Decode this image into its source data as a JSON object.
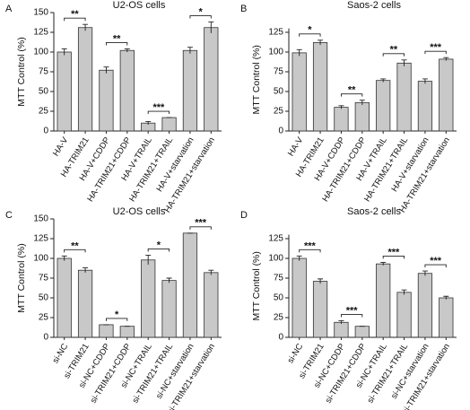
{
  "chart_data": [
    {
      "type": "bar",
      "panel": "A",
      "title": "U2-OS cells",
      "ylabel": "MTT Control (%)",
      "categories": [
        "HA-V",
        "HA-TRIM21",
        "HA-V+CDDP",
        "HA-TRIM21+CDDP",
        "HA-V+TRAIL",
        "HA-TRIM21+TRAIL",
        "HA-V+starvation",
        "HA-TRIM21+starvation"
      ],
      "values": [
        100,
        131,
        77,
        102,
        10,
        17,
        102,
        131
      ],
      "errors": [
        4,
        4,
        4,
        2,
        2,
        0,
        4,
        7
      ],
      "annotations": [
        "**",
        "**",
        "***",
        "*"
      ],
      "ylim": [
        0,
        150
      ],
      "yticks": [
        0,
        25,
        50,
        75,
        100,
        125,
        150
      ],
      "color": "#c8c8c8"
    },
    {
      "type": "bar",
      "panel": "B",
      "title": "Saos-2 cells",
      "ylabel": "MTT Control (%)",
      "categories": [
        "HA-V",
        "HA-TRIM21",
        "HA-V+CDDP",
        "HA-TRIM21+CDDP",
        "HA-V+TRAIL",
        "HA-TRIM21+TRAIL",
        "HA-V+starvation",
        "HA-TRIM21+starvation"
      ],
      "values": [
        99,
        112,
        30,
        36,
        64,
        86,
        63,
        91
      ],
      "errors": [
        4,
        3,
        2,
        3,
        2,
        4,
        3,
        2
      ],
      "annotations": [
        "*",
        "**",
        "**",
        "***"
      ],
      "ylim": [
        0,
        130
      ],
      "yticks": [
        0,
        25,
        50,
        75,
        100,
        125
      ],
      "color": "#c8c8c8"
    },
    {
      "type": "bar",
      "panel": "C",
      "title": "U2-OS cells",
      "ylabel": "MTT Control (%)",
      "categories": [
        "si-NC",
        "si-TRIM21",
        "si-NC+CDDP",
        "si-TRIM21+CDDP",
        "si-NC+TRAIL",
        "si-TRIM21+TRAIL",
        "si-NC+starvation",
        "si-TRIM21+starvation"
      ],
      "values": [
        100,
        85,
        16,
        14,
        98,
        72,
        132,
        82
      ],
      "errors": [
        3,
        3,
        0,
        0,
        6,
        3,
        0,
        3
      ],
      "annotations": [
        "**",
        "*",
        "*",
        "***"
      ],
      "ylim": [
        0,
        150
      ],
      "yticks": [
        0,
        25,
        50,
        75,
        100,
        125,
        150
      ],
      "color": "#c8c8c8"
    },
    {
      "type": "bar",
      "panel": "D",
      "title": "Saos-2 cells",
      "ylabel": "MTT Control (%)",
      "categories": [
        "si-NC",
        "si-TRIM21",
        "si-NC+CDDP",
        "si-TRIM21+CDDP",
        "si-NC+TRAIL",
        "si-TRIM21+TRAIL",
        "si-NC+starvation",
        "si-TRIM21+starvation"
      ],
      "values": [
        100,
        71,
        19,
        14,
        93,
        57,
        81,
        50
      ],
      "errors": [
        3,
        3,
        2,
        0,
        2,
        3,
        3,
        2
      ],
      "annotations": [
        "***",
        "***",
        "***",
        "***"
      ],
      "ylim": [
        0,
        130
      ],
      "yticks": [
        0,
        25,
        50,
        75,
        100,
        125
      ],
      "color": "#c8c8c8"
    }
  ]
}
